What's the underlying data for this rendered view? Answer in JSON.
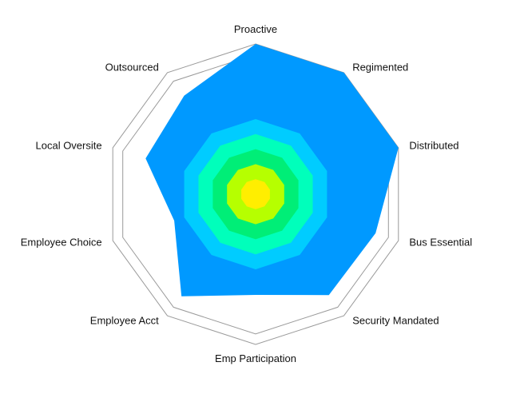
{
  "chart_data": {
    "type": "radar",
    "title": "",
    "axes": [
      "Proactive",
      "Regimented",
      "Distributed",
      "Bus Essential",
      "Security Mandated",
      "Emp Participation",
      "Employee Acct",
      "Employee Choice",
      "Local Oversite",
      "Outsourced"
    ],
    "range": [
      0,
      10
    ],
    "outline_levels": [
      10,
      9.3
    ],
    "band_levels": [
      {
        "level": 1,
        "color": "#ffee00"
      },
      {
        "level": 2,
        "color": "#b6ff00"
      },
      {
        "level": 3,
        "color": "#00ee77"
      },
      {
        "level": 4,
        "color": "#00ffbb"
      },
      {
        "level": 5,
        "color": "#00ccff"
      }
    ],
    "series": [
      {
        "values": [
          10,
          10,
          10,
          8.4,
          8.3,
          6.7,
          8.4,
          5.7,
          7.7,
          8.1
        ],
        "color": "#0099ff"
      }
    ]
  }
}
